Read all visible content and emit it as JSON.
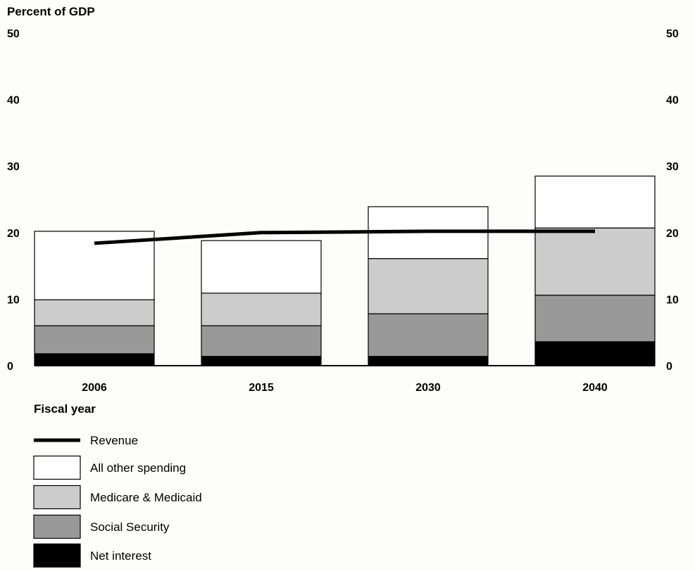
{
  "chart_data": {
    "type": "bar",
    "stacked": true,
    "title": "",
    "ylabel": "Percent of GDP",
    "xlabel": "Fiscal year",
    "ylim": [
      0,
      50
    ],
    "yticks": [
      0,
      10,
      20,
      30,
      40,
      50
    ],
    "categories": [
      "2006",
      "2015",
      "2030",
      "2040"
    ],
    "series": [
      {
        "name": "Net interest",
        "values": [
          1.8,
          1.4,
          1.4,
          3.6
        ],
        "color": "#000000"
      },
      {
        "name": "Social Security",
        "values": [
          4.2,
          4.6,
          6.4,
          7.0
        ],
        "color": "#999999"
      },
      {
        "name": "Medicare & Medicaid",
        "values": [
          3.9,
          4.9,
          8.3,
          10.1
        ],
        "color": "#cccccc"
      },
      {
        "name": "All other spending",
        "values": [
          10.3,
          7.9,
          7.8,
          7.8
        ],
        "color": "#ffffff"
      }
    ],
    "line_series": {
      "name": "Revenue",
      "values": [
        18.4,
        20.0,
        20.2,
        20.2
      ],
      "color": "#000000"
    },
    "legend": {
      "placement": "bottom-left",
      "order": [
        "Revenue",
        "All other spending",
        "Medicare & Medicaid",
        "Social Security",
        "Net interest"
      ]
    },
    "grid": false
  }
}
